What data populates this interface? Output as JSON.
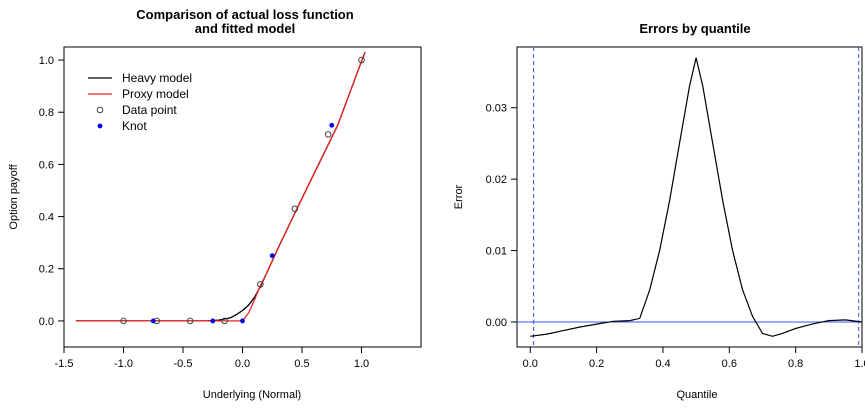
{
  "chart_data": [
    {
      "type": "line",
      "title_lines": [
        "Comparison of actual loss function",
        "and fitted model"
      ],
      "xlabel": "Underlying (Normal)",
      "ylabel": "Option payoff",
      "xlim": [
        -1.5,
        1.5
      ],
      "ylim": [
        -0.1,
        1.05
      ],
      "xticks": [
        -1.5,
        -1.0,
        -0.5,
        0.0,
        0.5,
        1.0
      ],
      "xtick_labels": [
        "-1.5",
        "-1.0",
        "-0.5",
        "0.0",
        "0.5",
        "1.0"
      ],
      "yticks": [
        0.0,
        0.2,
        0.4,
        0.6,
        0.8,
        1.0
      ],
      "ytick_labels": [
        "0.0",
        "0.2",
        "0.4",
        "0.6",
        "0.8",
        "1.0"
      ],
      "legend": {
        "placement": "top-left",
        "entries": [
          {
            "label": "Heavy model",
            "kind": "line",
            "color": "#000000"
          },
          {
            "label": "Proxy model",
            "kind": "line",
            "color": "#e8221e"
          },
          {
            "label": "Data point",
            "kind": "open-circle",
            "color": "#000000"
          },
          {
            "label": "Knot",
            "kind": "filled-point",
            "color": "#0000ee"
          }
        ]
      },
      "series": [
        {
          "name": "Heavy model",
          "color": "#000000",
          "x": [
            -1.4,
            -0.3,
            -0.2,
            -0.1,
            -0.05,
            0.0,
            0.05,
            0.1,
            0.15,
            0.2,
            0.3,
            0.5,
            0.8,
            1.0,
            1.03
          ],
          "y": [
            0.0,
            0.0,
            0.003,
            0.012,
            0.025,
            0.04,
            0.06,
            0.09,
            0.13,
            0.18,
            0.28,
            0.47,
            0.75,
            0.995,
            1.03
          ]
        },
        {
          "name": "Proxy model",
          "color": "#e8221e",
          "x": [
            -1.4,
            -0.05,
            0.0,
            0.05,
            0.1,
            0.15,
            0.2,
            0.3,
            0.5,
            0.8,
            1.0,
            1.03
          ],
          "y": [
            0.0,
            0.0,
            0.0,
            0.03,
            0.08,
            0.135,
            0.18,
            0.28,
            0.47,
            0.75,
            0.995,
            1.03
          ]
        },
        {
          "name": "Data point",
          "color": "#000000",
          "x": [
            -1.0,
            -0.72,
            -0.44,
            -0.15,
            0.15,
            0.44,
            0.72,
            1.0
          ],
          "y": [
            0.0,
            0.0,
            0.0,
            0.0,
            0.14,
            0.43,
            0.715,
            1.0
          ]
        },
        {
          "name": "Knot",
          "color": "#0000ee",
          "x": [
            -0.75,
            -0.25,
            0.0,
            0.25,
            0.75
          ],
          "y": [
            0.0,
            0.0,
            0.0,
            0.25,
            0.75
          ]
        }
      ]
    },
    {
      "type": "line",
      "title": "Errors by quantile",
      "xlabel": "Quantile",
      "ylabel": "Error",
      "xlim": [
        -0.04,
        1.0
      ],
      "ylim": [
        -0.0035,
        0.0385
      ],
      "xticks": [
        0.0,
        0.2,
        0.4,
        0.6,
        0.8,
        1.0
      ],
      "xtick_labels": [
        "0.0",
        "0.2",
        "0.4",
        "0.6",
        "0.8",
        "1.0"
      ],
      "yticks": [
        0.0,
        0.01,
        0.02,
        0.03
      ],
      "ytick_labels": [
        "0.00",
        "0.01",
        "0.02",
        "0.03"
      ],
      "reference_lines": [
        {
          "orientation": "horizontal",
          "value": 0.0,
          "style": "solid",
          "color": "#3355ee"
        },
        {
          "orientation": "vertical",
          "value": 0.01,
          "style": "dashed",
          "color": "#3355ee"
        },
        {
          "orientation": "vertical",
          "value": 0.99,
          "style": "dashed",
          "color": "#3355ee"
        }
      ],
      "series": [
        {
          "name": "Error",
          "color": "#000000",
          "x": [
            0.0,
            0.05,
            0.1,
            0.15,
            0.2,
            0.25,
            0.3,
            0.33,
            0.36,
            0.39,
            0.42,
            0.45,
            0.48,
            0.5,
            0.52,
            0.55,
            0.58,
            0.61,
            0.64,
            0.67,
            0.7,
            0.73,
            0.76,
            0.8,
            0.85,
            0.9,
            0.95,
            1.0
          ],
          "y": [
            -0.002,
            -0.0017,
            -0.0012,
            -0.0007,
            -0.0003,
            0.0001,
            0.0002,
            0.0005,
            0.0045,
            0.01,
            0.017,
            0.025,
            0.033,
            0.037,
            0.033,
            0.025,
            0.017,
            0.01,
            0.0045,
            0.0008,
            -0.0016,
            -0.002,
            -0.0016,
            -0.0009,
            -0.0003,
            0.0002,
            0.0003,
            0.0
          ]
        }
      ]
    }
  ]
}
